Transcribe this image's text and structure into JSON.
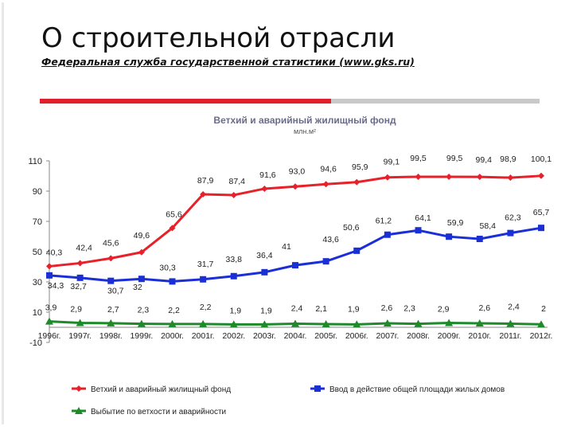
{
  "slide": {
    "title": "О строительной отрасли",
    "subtitle": "Федеральная служба государственной статистики (www.gks.ru)",
    "accent_colors": {
      "red": "#e0202a",
      "gray": "#c9c9c9"
    }
  },
  "chart_data": {
    "type": "line",
    "title": "Ветхий и аварийный жилищный фонд",
    "subtitle": "млн.м²",
    "xlabel": "",
    "ylabel": "",
    "ylim": [
      -10,
      110
    ],
    "y_ticks": [
      -10,
      10,
      30,
      50,
      70,
      90,
      110
    ],
    "grid": false,
    "legend_position": "bottom",
    "categories": [
      "1996г.",
      "1997г.",
      "1998г.",
      "1999г.",
      "2000г.",
      "2001г.",
      "2002г.",
      "2003г.",
      "2004г.",
      "2005г.",
      "2006г.",
      "2007г.",
      "2008г.",
      "2009г.",
      "2010г.",
      "2011г.",
      "2012г."
    ],
    "series": [
      {
        "name": "Ветхий и аварийный жилищный фонд",
        "color": "#e8202a",
        "marker": "diamond",
        "values": [
          40.3,
          42.4,
          45.6,
          49.6,
          65.6,
          87.9,
          87.4,
          91.6,
          93.0,
          94.6,
          95.9,
          99.1,
          99.5,
          99.5,
          99.4,
          98.9,
          100.1
        ],
        "labels": [
          "40,3",
          "42,4",
          "45,6",
          "49,6",
          "65,6",
          "87,9",
          "87,4",
          "91,6",
          "93,0",
          "94,6",
          "95,9",
          "99,1",
          "99,5",
          "99,5",
          "99,4",
          "98,9",
          "100,1"
        ]
      },
      {
        "name": "Ввод в действие общей площади жилых домов",
        "color": "#1a2fd6",
        "marker": "square",
        "values": [
          34.3,
          32.7,
          30.7,
          32.0,
          30.3,
          31.7,
          33.8,
          36.4,
          41.0,
          43.6,
          50.6,
          61.2,
          64.1,
          59.9,
          58.4,
          62.3,
          65.7
        ],
        "labels": [
          "34,3",
          "32,7",
          "30,7",
          "32",
          "30,3",
          "31,7",
          "33,8",
          "36,4",
          "41",
          "43,6",
          "50,6",
          "61,2",
          "64,1",
          "59,9",
          "58,4",
          "62,3",
          "65,7"
        ]
      },
      {
        "name": "Выбытие по ветхости и аварийности",
        "color": "#1e8a2a",
        "marker": "triangle",
        "values": [
          3.9,
          2.9,
          2.7,
          2.3,
          2.2,
          2.2,
          1.9,
          1.9,
          2.4,
          2.1,
          1.9,
          2.6,
          2.3,
          2.9,
          2.6,
          2.4,
          2.0
        ],
        "labels": [
          "3,9",
          "2,9",
          "2,7",
          "2,3",
          "2,2",
          "2,2",
          "1,9",
          "1,9",
          "2,4",
          "2,1",
          "1,9",
          "2,6",
          "2,3",
          "2,9",
          "2,6",
          "2,4",
          "2"
        ]
      }
    ]
  }
}
